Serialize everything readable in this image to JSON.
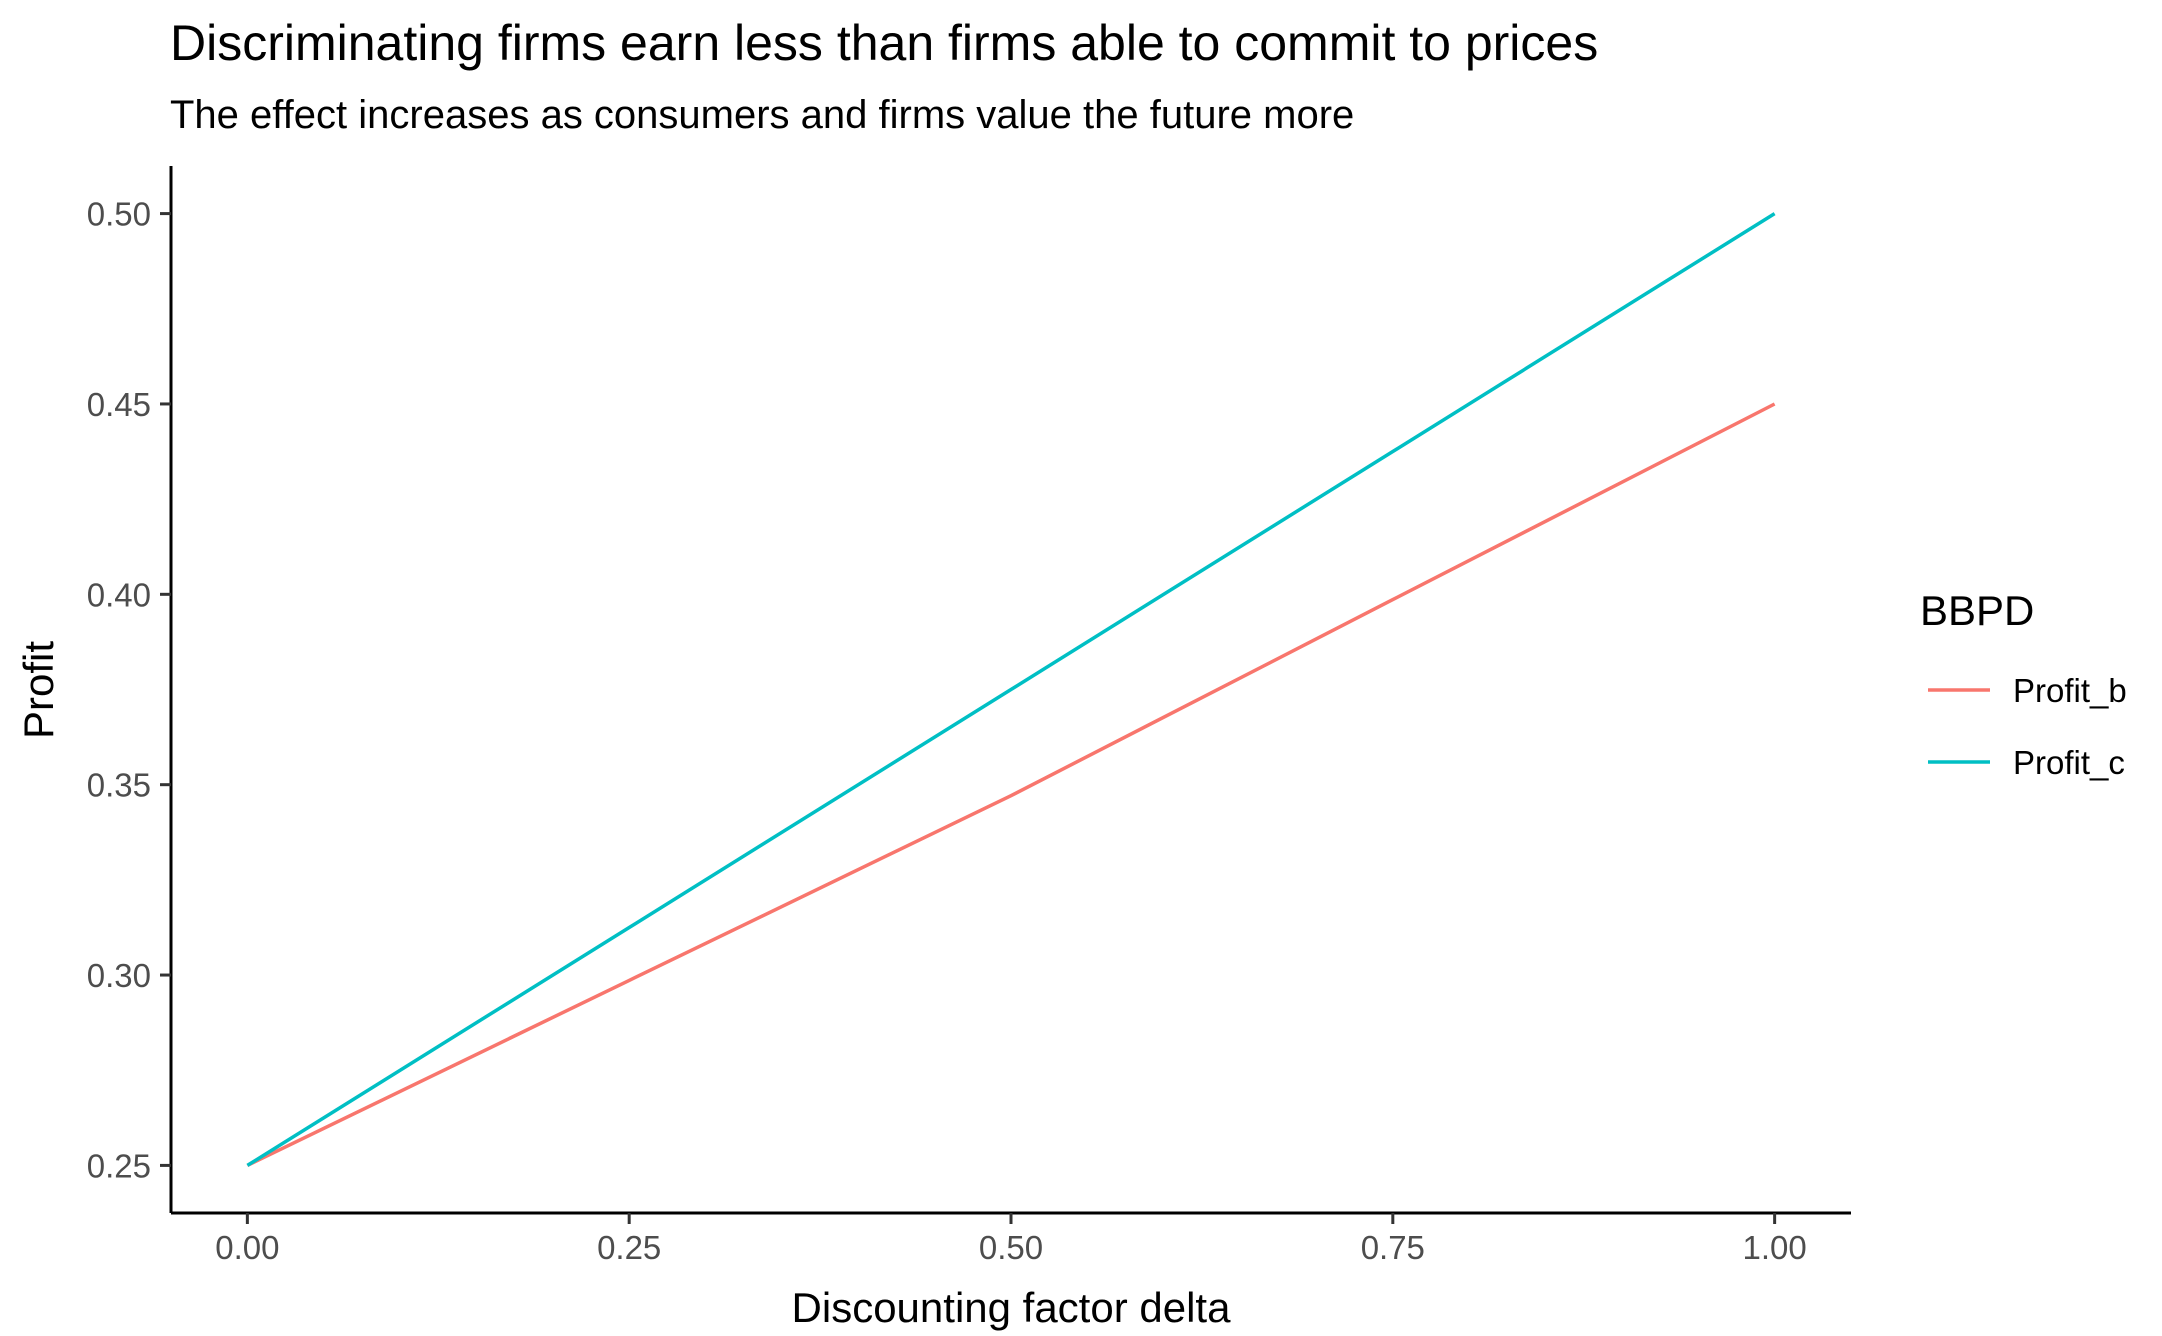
{
  "chart_data": {
    "type": "line",
    "title": "Discriminating firms earn less than firms able to commit to prices",
    "subtitle": "The effect increases as consumers and firms value the future more",
    "xlabel": "Discounting factor delta",
    "ylabel": "Profit",
    "xlim": [
      -0.05,
      1.05
    ],
    "ylim": [
      0.2375,
      0.5125
    ],
    "x_ticks": [
      "0.00",
      "0.25",
      "0.50",
      "0.75",
      "1.00"
    ],
    "y_ticks": [
      "0.25",
      "0.30",
      "0.35",
      "0.40",
      "0.45",
      "0.50"
    ],
    "grid": false,
    "legend": {
      "title": "BBPD",
      "position": "right"
    },
    "series": [
      {
        "name": "Profit_b",
        "color": "#F8766D",
        "points": [
          [
            0.0,
            0.25
          ],
          [
            0.25,
            0.2986
          ],
          [
            0.5,
            0.3471
          ],
          [
            0.75,
            0.3986
          ],
          [
            1.0,
            0.45
          ]
        ]
      },
      {
        "name": "Profit_c",
        "color": "#00BFC4",
        "points": [
          [
            0.0,
            0.25
          ],
          [
            0.25,
            0.3125
          ],
          [
            0.5,
            0.375
          ],
          [
            0.75,
            0.4375
          ],
          [
            1.0,
            0.5
          ]
        ]
      }
    ]
  }
}
